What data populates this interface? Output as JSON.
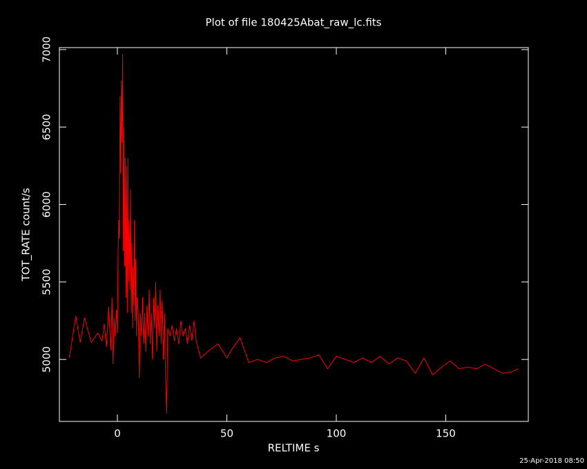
{
  "chart_data": {
    "type": "line",
    "title": "Plot of file 180425Abat_raw_lc.fits",
    "x_label": "RELTIME  s",
    "y_label": "TOT_RATE  count/s",
    "footer": "25-Apr-2018 08:50",
    "color": "#ff0000",
    "xlim": [
      -26.5,
      187.7
    ],
    "ylim": [
      4600,
      7013
    ],
    "xticks": [
      0,
      50,
      100,
      150
    ],
    "yticks": [
      5000,
      5500,
      6000,
      6500,
      7000
    ],
    "x": [
      -22,
      -19,
      -17,
      -15,
      -12,
      -9,
      -7,
      -6,
      -5,
      -4,
      -3,
      -2.5,
      -2,
      -1.5,
      -1,
      -0.5,
      0,
      0.3,
      0.6,
      0.9,
      1.2,
      1.5,
      1.8,
      2.1,
      2.4,
      2.7,
      3,
      3.3,
      3.6,
      3.9,
      4.2,
      4.5,
      4.8,
      5.1,
      5.4,
      5.7,
      6,
      6.3,
      6.6,
      6.9,
      7.2,
      7.5,
      7.8,
      8.1,
      8.4,
      8.7,
      9,
      9.5,
      10,
      10.5,
      11,
      11.5,
      12,
      12.5,
      13,
      13.5,
      14,
      14.5,
      15,
      15.5,
      16,
      16.5,
      17,
      17.5,
      18,
      18.5,
      19,
      19.5,
      20,
      20.5,
      21,
      21.5,
      22,
      22.5,
      23,
      24,
      25,
      26,
      27,
      28,
      29,
      30,
      31,
      32,
      33,
      34,
      35,
      36,
      38,
      42,
      46,
      50,
      52,
      56,
      60,
      64,
      68,
      72,
      76,
      80,
      84,
      88,
      92,
      96,
      100,
      104,
      108,
      112,
      116,
      120,
      124,
      128,
      132,
      136,
      140,
      144,
      148,
      152,
      156,
      160,
      164,
      168,
      172,
      176,
      180,
      183
    ],
    "values": [
      5010,
      5280,
      5110,
      5270,
      5110,
      5170,
      5120,
      5230,
      5080,
      5340,
      5060,
      5400,
      4970,
      5270,
      5150,
      5320,
      5170,
      5680,
      5900,
      5780,
      6700,
      6200,
      6800,
      6400,
      6970,
      5700,
      6500,
      5600,
      6300,
      5400,
      6250,
      5300,
      6300,
      5500,
      5900,
      5450,
      6100,
      5300,
      5750,
      5200,
      5600,
      5350,
      5900,
      5250,
      5650,
      5150,
      5400,
      5300,
      4880,
      5300,
      5150,
      5400,
      5100,
      5300,
      5050,
      5350,
      5150,
      5450,
      5100,
      5300,
      5000,
      5400,
      5200,
      5500,
      5050,
      5350,
      5150,
      5450,
      5100,
      5380,
      5000,
      5300,
      4900,
      4650,
      5200,
      5150,
      5220,
      5120,
      5200,
      5100,
      5250,
      5150,
      5200,
      5100,
      5220,
      5120,
      5250,
      5120,
      5010,
      5060,
      5100,
      5010,
      5060,
      5140,
      4980,
      5000,
      4980,
      5010,
      5020,
      4990,
      5000,
      5010,
      5030,
      4940,
      5020,
      5000,
      4980,
      5010,
      4980,
      5020,
      4970,
      5010,
      4990,
      4910,
      5010,
      4900,
      4950,
      4990,
      4940,
      4950,
      4940,
      4970,
      4940,
      4910,
      4920,
      4940
    ]
  }
}
